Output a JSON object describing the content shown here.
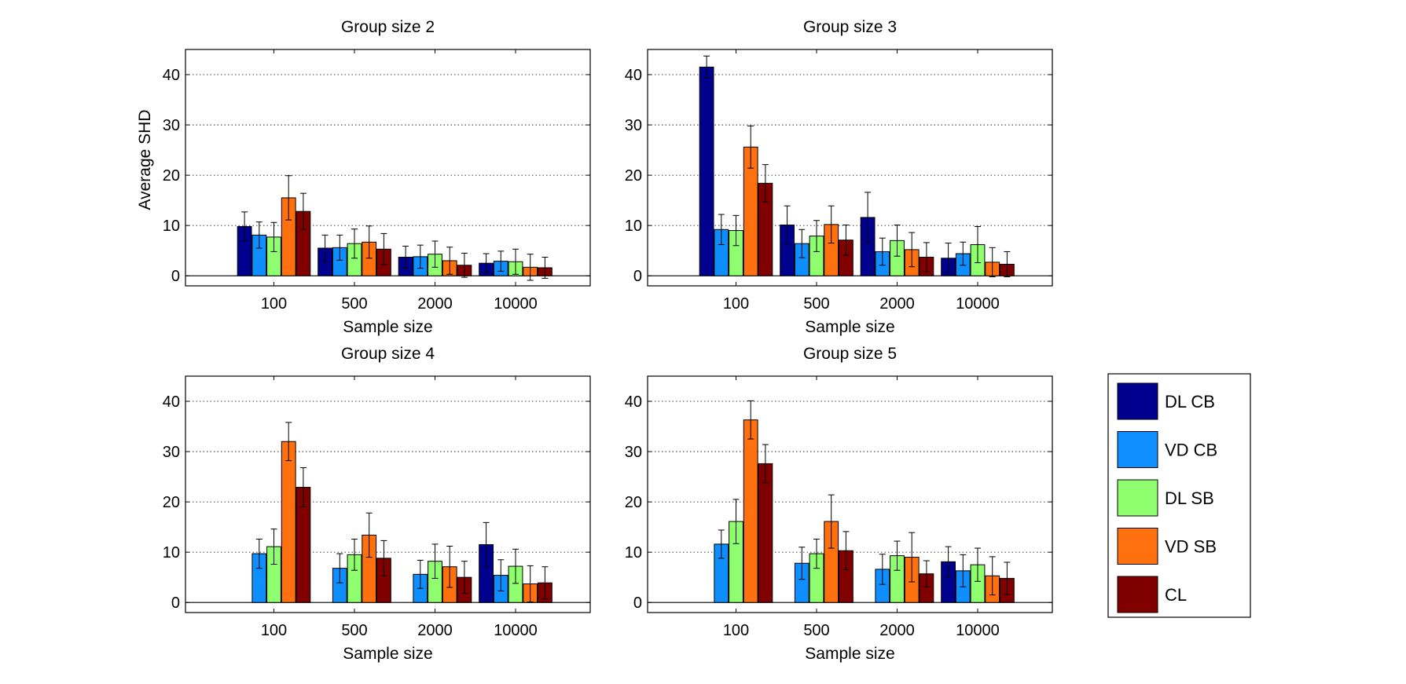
{
  "figure": {
    "ylabel_shared": "Average SHD"
  },
  "legend": {
    "entries": [
      {
        "label": "DL CB",
        "color": "#00008f"
      },
      {
        "label": "VD CB",
        "color": "#0f8fff"
      },
      {
        "label": "DL SB",
        "color": "#8fff70"
      },
      {
        "label": "VD SB",
        "color": "#ff700f"
      },
      {
        "label": "CL",
        "color": "#800000"
      }
    ]
  },
  "chart_data": [
    {
      "type": "bar",
      "title": "Group size 2",
      "xlabel": "Sample size",
      "ylabel": "Average SHD",
      "categories": [
        "100",
        "500",
        "2000",
        "10000"
      ],
      "ylim": [
        -2,
        45
      ],
      "yticks": [
        0,
        10,
        20,
        30,
        40
      ],
      "grid": "y-dotted",
      "series": [
        {
          "name": "DL CB",
          "values": [
            9.8,
            5.5,
            3.7,
            2.5
          ],
          "errors": [
            2.9,
            2.6,
            2.2,
            1.9
          ]
        },
        {
          "name": "VD CB",
          "values": [
            8.1,
            5.6,
            3.8,
            2.9
          ],
          "errors": [
            2.6,
            2.5,
            2.3,
            2.0
          ]
        },
        {
          "name": "DL SB",
          "values": [
            7.7,
            6.4,
            4.3,
            2.8
          ],
          "errors": [
            2.9,
            2.9,
            2.6,
            2.5
          ]
        },
        {
          "name": "VD SB",
          "values": [
            15.5,
            6.7,
            3.0,
            1.7
          ],
          "errors": [
            4.4,
            3.2,
            2.7,
            2.6
          ]
        },
        {
          "name": "CL",
          "values": [
            12.8,
            5.3,
            2.1,
            1.6
          ],
          "errors": [
            3.6,
            3.1,
            2.4,
            2.1
          ]
        }
      ]
    },
    {
      "type": "bar",
      "title": "Group size 3",
      "xlabel": "Sample size",
      "ylabel": "",
      "categories": [
        "100",
        "500",
        "2000",
        "10000"
      ],
      "ylim": [
        -2,
        45
      ],
      "yticks": [
        0,
        10,
        20,
        30,
        40
      ],
      "grid": "y-dotted",
      "series": [
        {
          "name": "DL CB",
          "values": [
            41.5,
            10.1,
            11.6,
            3.5
          ],
          "errors": [
            2.2,
            3.8,
            5.0,
            3.0
          ]
        },
        {
          "name": "VD CB",
          "values": [
            9.2,
            6.4,
            4.8,
            4.4
          ],
          "errors": [
            3.0,
            2.8,
            2.7,
            2.3
          ]
        },
        {
          "name": "DL SB",
          "values": [
            9.0,
            7.9,
            7.0,
            6.2
          ],
          "errors": [
            3.0,
            3.1,
            3.1,
            3.6
          ]
        },
        {
          "name": "VD SB",
          "values": [
            25.6,
            10.2,
            5.2,
            2.7
          ],
          "errors": [
            4.2,
            3.7,
            3.4,
            2.9
          ]
        },
        {
          "name": "CL",
          "values": [
            18.4,
            7.1,
            3.7,
            2.3
          ],
          "errors": [
            3.7,
            3.0,
            2.9,
            2.5
          ]
        }
      ]
    },
    {
      "type": "bar",
      "title": "Group size 4",
      "xlabel": "Sample size",
      "ylabel": "",
      "categories": [
        "100",
        "500",
        "2000",
        "10000"
      ],
      "ylim": [
        -2,
        45
      ],
      "yticks": [
        0,
        10,
        20,
        30,
        40
      ],
      "grid": "y-dotted",
      "series": [
        {
          "name": "DL CB",
          "values": [
            0,
            0,
            0,
            11.5
          ],
          "errors": [
            0,
            0,
            0,
            4.4
          ]
        },
        {
          "name": "VD CB",
          "values": [
            9.7,
            6.8,
            5.6,
            5.4
          ],
          "errors": [
            2.9,
            2.9,
            2.8,
            3.1
          ]
        },
        {
          "name": "DL SB",
          "values": [
            11.1,
            9.5,
            8.2,
            7.2
          ],
          "errors": [
            3.5,
            3.1,
            3.4,
            3.4
          ]
        },
        {
          "name": "VD SB",
          "values": [
            32.0,
            13.4,
            7.1,
            3.7
          ],
          "errors": [
            3.8,
            4.4,
            4.1,
            3.6
          ]
        },
        {
          "name": "CL",
          "values": [
            22.9,
            8.8,
            5.0,
            3.9
          ],
          "errors": [
            3.9,
            3.5,
            3.2,
            3.2
          ]
        }
      ]
    },
    {
      "type": "bar",
      "title": "Group size 5",
      "xlabel": "Sample size",
      "ylabel": "",
      "categories": [
        "100",
        "500",
        "2000",
        "10000"
      ],
      "ylim": [
        -2,
        45
      ],
      "yticks": [
        0,
        10,
        20,
        30,
        40
      ],
      "grid": "y-dotted",
      "series": [
        {
          "name": "DL CB",
          "values": [
            0,
            0,
            0,
            8.1
          ],
          "errors": [
            0,
            0,
            0,
            3.0
          ]
        },
        {
          "name": "VD CB",
          "values": [
            11.6,
            7.8,
            6.6,
            6.3
          ],
          "errors": [
            2.8,
            3.2,
            3.0,
            3.2
          ]
        },
        {
          "name": "DL SB",
          "values": [
            16.1,
            9.7,
            9.3,
            7.5
          ],
          "errors": [
            4.4,
            2.9,
            2.9,
            3.3
          ]
        },
        {
          "name": "VD SB",
          "values": [
            36.3,
            16.1,
            9.0,
            5.3
          ],
          "errors": [
            3.8,
            5.3,
            4.9,
            3.8
          ]
        },
        {
          "name": "CL",
          "values": [
            27.6,
            10.3,
            5.7,
            4.8
          ],
          "errors": [
            3.8,
            3.8,
            2.6,
            3.2
          ]
        }
      ]
    }
  ]
}
